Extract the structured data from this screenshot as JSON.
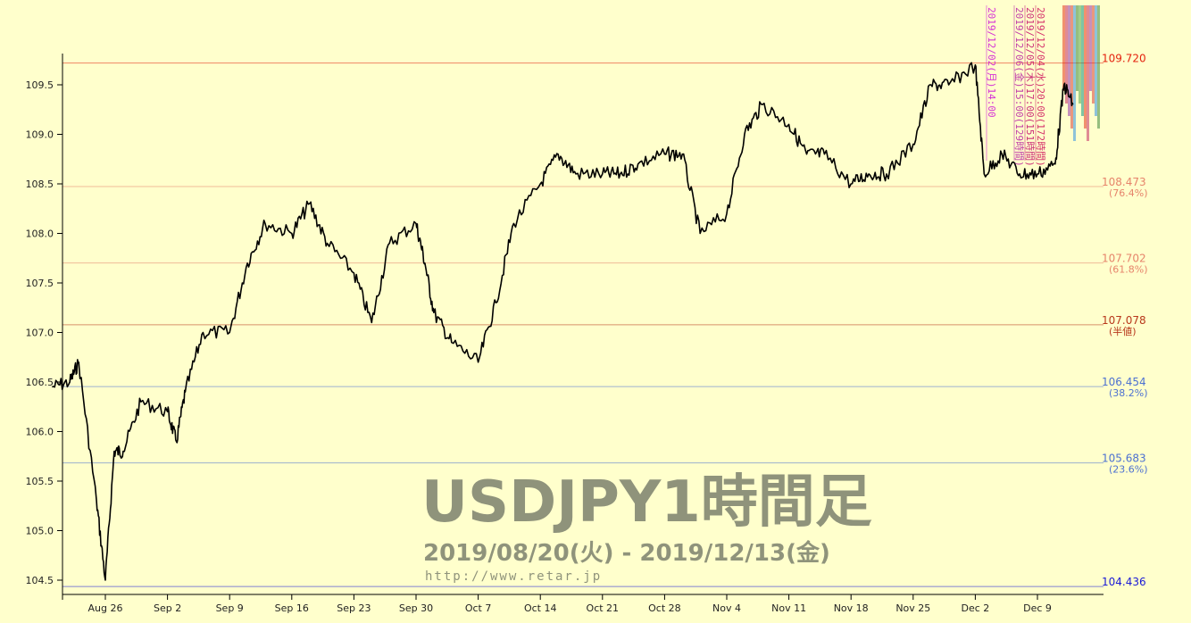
{
  "chart_data": {
    "type": "line",
    "title": "USDJPY1時間足",
    "subtitle": "2019/08/20(火) - 2019/12/13(金)",
    "source_url": "http://www.retar.jp",
    "xlabel": "",
    "ylabel": "",
    "ylim": [
      104.436,
      109.72
    ],
    "y_ticks": [
      "104.5",
      "105.0",
      "105.5",
      "106.0",
      "106.5",
      "107.0",
      "107.5",
      "108.0",
      "108.5",
      "109.0",
      "109.5"
    ],
    "x_ticks": [
      "Aug 26",
      "Sep 2",
      "Sep 9",
      "Sep 16",
      "Sep 23",
      "Sep 30",
      "Oct 7",
      "Oct 14",
      "Oct 21",
      "Oct 28",
      "Nov 4",
      "Nov 11",
      "Nov 18",
      "Nov 25",
      "Dec 2",
      "Dec 9"
    ],
    "grid": false,
    "series": [
      {
        "x": [
          "2019-08-20",
          "2019-08-22",
          "2019-08-23",
          "2019-08-25",
          "2019-08-26",
          "2019-08-27",
          "2019-08-28",
          "2019-08-30",
          "2019-09-02",
          "2019-09-03",
          "2019-09-04",
          "2019-09-06",
          "2019-09-09",
          "2019-09-11",
          "2019-09-13",
          "2019-09-16",
          "2019-09-18",
          "2019-09-20",
          "2019-09-23",
          "2019-09-25",
          "2019-09-27",
          "2019-09-30",
          "2019-10-01",
          "2019-10-02",
          "2019-10-04",
          "2019-10-07",
          "2019-10-09",
          "2019-10-11",
          "2019-10-14",
          "2019-10-16",
          "2019-10-18",
          "2019-10-21",
          "2019-10-23",
          "2019-10-25",
          "2019-10-28",
          "2019-10-30",
          "2019-11-01",
          "2019-11-04",
          "2019-11-06",
          "2019-11-08",
          "2019-11-11",
          "2019-11-13",
          "2019-11-15",
          "2019-11-18",
          "2019-11-20",
          "2019-11-22",
          "2019-11-25",
          "2019-11-27",
          "2019-11-29",
          "2019-12-02",
          "2019-12-03",
          "2019-12-05",
          "2019-12-07",
          "2019-12-09",
          "2019-12-11",
          "2019-12-12",
          "2019-12-13"
        ],
        "values": [
          106.45,
          106.5,
          106.7,
          105.3,
          104.5,
          105.8,
          105.8,
          106.3,
          106.2,
          105.9,
          106.4,
          107.0,
          107.0,
          107.7,
          108.1,
          108.0,
          108.3,
          107.9,
          107.6,
          107.1,
          107.9,
          108.1,
          107.7,
          107.2,
          106.9,
          106.7,
          107.3,
          108.1,
          108.5,
          108.8,
          108.6,
          108.6,
          108.6,
          108.7,
          108.8,
          108.8,
          108.0,
          108.2,
          109.0,
          109.3,
          109.1,
          108.8,
          108.8,
          108.5,
          108.6,
          108.6,
          108.9,
          109.5,
          109.5,
          109.7,
          108.6,
          108.8,
          108.6,
          108.6,
          108.7,
          109.5,
          109.3
        ]
      }
    ],
    "levels": [
      {
        "value": "109.720",
        "label": "",
        "color": "#e4230f"
      },
      {
        "value": "108.473",
        "label": "(76.4%)",
        "color": "#e6846b"
      },
      {
        "value": "107.702",
        "label": "(61.8%)",
        "color": "#e6846b"
      },
      {
        "value": "107.078",
        "label": "(半値)",
        "color": "#b8381c"
      },
      {
        "value": "106.454",
        "label": "(38.2%)",
        "color": "#4d71d1"
      },
      {
        "value": "105.683",
        "label": "(23.6%)",
        "color": "#4d71d1"
      },
      {
        "value": "104.436",
        "label": "",
        "color": "#1a1ad6"
      }
    ],
    "annotations": [
      {
        "text": "2019/12/02(月)14:00",
        "color": "#d530d5"
      },
      {
        "text": "2019/12/06(金)15:00(129時間)",
        "color": "#c23faa"
      },
      {
        "text": "2019/12/05(木)17:00(151時間)",
        "color": "#cc2f7a"
      },
      {
        "text": "2019/12/04(水)20:00(172時間)",
        "color": "#d5306a"
      }
    ]
  }
}
